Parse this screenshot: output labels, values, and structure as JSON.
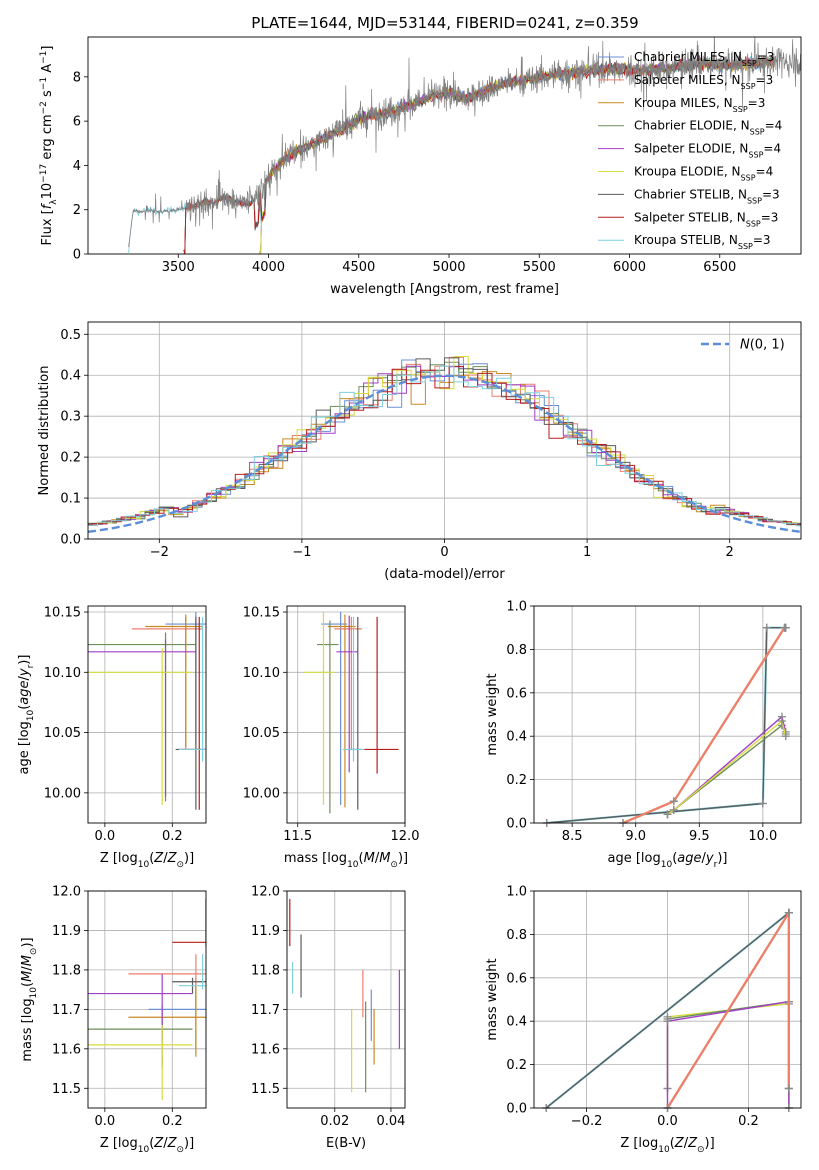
{
  "figure": {
    "title": "PLATE=1644, MJD=53144, FIBERID=0241, z=0.359"
  },
  "colors": {
    "chabrier_miles": "#6b8fd6",
    "salpeter_miles": "#ee7f6e",
    "kroupa_miles": "#c98a22",
    "chabrier_elodie": "#6e8f5a",
    "salpeter_elodie": "#a23fc8",
    "kroupa_elodie": "#d6dc3f",
    "chabrier_stelib": "#5c5c5c",
    "salpeter_stelib": "#b81e1e",
    "kroupa_stelib": "#7fcfe0",
    "normal": "#5b8ed6",
    "spectrum": "#808080"
  },
  "chart_data": [
    {
      "type": "line",
      "id": "spectrum",
      "xlabel": "wavelength [Angstrom, rest frame]",
      "ylabel_parts": [
        "Flux [",
        "f",
        "λ",
        "10",
        "−17",
        " erg cm",
        "−2",
        " s",
        "−1",
        " A",
        "−1",
        "]"
      ],
      "xlim": [
        3000,
        6950
      ],
      "ylim": [
        0,
        9.8
      ],
      "xticks": [
        3500,
        4000,
        4500,
        5000,
        5500,
        6000,
        6500
      ],
      "yticks": [
        0,
        2,
        4,
        6,
        8
      ],
      "legend_position": "top-right",
      "legend": [
        {
          "pre": "Chabrier MILES, N",
          "sub": "SSP",
          "post": "=3",
          "color_key": "chabrier_miles"
        },
        {
          "pre": "Salpeter MILES, N",
          "sub": "SSP",
          "post": "=3",
          "color_key": "salpeter_miles"
        },
        {
          "pre": "Kroupa MILES, N",
          "sub": "SSP",
          "post": "=3",
          "color_key": "kroupa_miles"
        },
        {
          "pre": "Chabrier ELODIE, N",
          "sub": "SSP",
          "post": "=4",
          "color_key": "chabrier_elodie"
        },
        {
          "pre": "Salpeter ELODIE, N",
          "sub": "SSP",
          "post": "=4",
          "color_key": "salpeter_elodie"
        },
        {
          "pre": "Kroupa ELODIE, N",
          "sub": "SSP",
          "post": "=4",
          "color_key": "kroupa_elodie"
        },
        {
          "pre": "Chabrier STELIB, N",
          "sub": "SSP",
          "post": "=3",
          "color_key": "chabrier_stelib"
        },
        {
          "pre": "Salpeter STELIB, N",
          "sub": "SSP",
          "post": "=3",
          "color_key": "salpeter_stelib"
        },
        {
          "pre": "Kroupa STELIB, N",
          "sub": "SSP",
          "post": "=3",
          "color_key": "kroupa_stelib"
        }
      ],
      "continuum": {
        "x": [
          3220,
          3250,
          3300,
          3350,
          3400,
          3450,
          3500,
          3550,
          3600,
          3650,
          3700,
          3750,
          3800,
          3850,
          3900,
          3950,
          4000,
          4100,
          4200,
          4300,
          4400,
          4500,
          4600,
          4700,
          4800,
          4900,
          5000,
          5100,
          5200,
          5300,
          5400,
          5500,
          5600,
          5700,
          5800,
          5900,
          6000,
          6100,
          6200,
          6300,
          6400,
          6500,
          6600,
          6700,
          6800
        ],
        "y": [
          0,
          1.95,
          1.9,
          2.0,
          1.9,
          1.95,
          2.0,
          2.1,
          2.2,
          2.4,
          2.3,
          2.6,
          2.4,
          2.3,
          2.3,
          2.6,
          3.5,
          4.4,
          4.8,
          5.2,
          5.6,
          6.1,
          6.3,
          6.5,
          6.8,
          7.1,
          7.3,
          7.0,
          7.4,
          7.7,
          7.8,
          8.0,
          8.1,
          8.2,
          8.3,
          8.4,
          8.3,
          8.3,
          8.4,
          8.5,
          8.6,
          8.5,
          8.6,
          8.6,
          8.7
        ]
      },
      "data_start": {
        "x": [
          3220,
          3530,
          3950
        ],
        "series": [
          "kroupa_stelib",
          "miles_and_stelib",
          "elodie"
        ]
      }
    },
    {
      "type": "line",
      "id": "residuals",
      "xlabel": "(data-model)/error",
      "ylabel": "Normed distribution",
      "xlim": [
        -2.5,
        2.5
      ],
      "ylim": [
        0,
        0.53
      ],
      "xticks": [
        -2,
        -1,
        0,
        1,
        2
      ],
      "yticks": [
        0.0,
        0.1,
        0.2,
        0.3,
        0.4,
        0.5
      ],
      "grid": true,
      "legend_position": "top-right",
      "normal_label": "N(0, 1)",
      "normal": {
        "mean": 0,
        "sigma": 1
      }
    },
    {
      "type": "scatter",
      "id": "age_vs_Z",
      "xlabel": "Z [log10(Z/Z⊙)]",
      "ylabel": "age  [log10(age/yr)]",
      "xlim": [
        -0.05,
        0.3
      ],
      "ylim": [
        9.975,
        10.155
      ],
      "xticks": [
        0.0,
        0.2
      ],
      "yticks": [
        10.0,
        10.05,
        10.1,
        10.15
      ],
      "grid": true,
      "points": [
        {
          "key": "chabrier_miles",
          "x": 0.27,
          "y": 10.14,
          "xerr": [
            0.09,
            0.03
          ],
          "yerr": [
            0.1,
            0.01
          ]
        },
        {
          "key": "salpeter_miles",
          "x": 0.24,
          "y": 10.136,
          "xerr": [
            0.16,
            0.05
          ],
          "yerr": [
            0.1,
            0.01
          ]
        },
        {
          "key": "kroupa_miles",
          "x": 0.24,
          "y": 10.138,
          "xerr": [
            0.12,
            0.05
          ],
          "yerr": [
            0.1,
            0.01
          ]
        },
        {
          "key": "chabrier_elodie",
          "x": 0.18,
          "y": 10.123,
          "xerr": [
            0.23,
            0.09
          ],
          "yerr": [
            0.13,
            0.01
          ]
        },
        {
          "key": "salpeter_elodie",
          "x": 0.18,
          "y": 10.117,
          "xerr": [
            0.23,
            0.09
          ],
          "yerr": [
            0.12,
            0.01
          ]
        },
        {
          "key": "kroupa_elodie",
          "x": 0.17,
          "y": 10.1,
          "xerr": [
            0.22,
            0.09
          ],
          "yerr": [
            0.11,
            0.02
          ]
        },
        {
          "key": "chabrier_stelib",
          "x": 0.27,
          "y": 10.036,
          "xerr": [
            0.06,
            0.03
          ],
          "yerr": [
            0.05,
            0.11
          ]
        },
        {
          "key": "salpeter_stelib",
          "x": 0.28,
          "y": 10.036,
          "xerr": [
            0.06,
            0.03
          ],
          "yerr": [
            0.05,
            0.11
          ]
        },
        {
          "key": "kroupa_stelib",
          "x": 0.29,
          "y": 10.036,
          "xerr": [
            0.07,
            0.02
          ],
          "yerr": [
            0.01,
            0.11
          ]
        }
      ]
    },
    {
      "type": "scatter",
      "id": "age_vs_mass",
      "xlabel": "mass [log10(M/M⊙)]",
      "xlim": [
        11.45,
        12.0
      ],
      "ylim": [
        9.975,
        10.155
      ],
      "xticks": [
        11.5,
        12.0
      ],
      "yticks": [
        10.0,
        10.05,
        10.1,
        10.15
      ],
      "grid": true,
      "points": [
        {
          "key": "chabrier_miles",
          "x": 11.7,
          "y": 10.14,
          "xerr": [
            0.09,
            0.03
          ],
          "yerr": [
            0.15,
            0.01
          ]
        },
        {
          "key": "salpeter_miles",
          "x": 11.75,
          "y": 10.136,
          "xerr": [
            0.08,
            0.05
          ],
          "yerr": [
            0.1,
            0.01
          ]
        },
        {
          "key": "kroupa_miles",
          "x": 11.72,
          "y": 10.138,
          "xerr": [
            0.08,
            0.05
          ],
          "yerr": [
            0.15,
            0.01
          ]
        },
        {
          "key": "chabrier_elodie",
          "x": 11.65,
          "y": 10.123,
          "xerr": [
            0.06,
            0.04
          ],
          "yerr": [
            0.14,
            0.02
          ]
        },
        {
          "key": "salpeter_elodie",
          "x": 11.74,
          "y": 10.117,
          "xerr": [
            0.06,
            0.04
          ],
          "yerr": [
            0.1,
            0.03
          ]
        },
        {
          "key": "kroupa_elodie",
          "x": 11.62,
          "y": 10.1,
          "xerr": [
            0.09,
            0.05
          ],
          "yerr": [
            0.11,
            0.05
          ]
        },
        {
          "key": "chabrier_stelib",
          "x": 11.78,
          "y": 10.036,
          "xerr": [
            0.04,
            0.02
          ],
          "yerr": [
            0.05,
            0.11
          ]
        },
        {
          "key": "salpeter_stelib",
          "x": 11.87,
          "y": 10.036,
          "xerr": [
            0.06,
            0.1
          ],
          "yerr": [
            0.02,
            0.11
          ]
        },
        {
          "key": "kroupa_stelib",
          "x": 11.76,
          "y": 10.036,
          "xerr": [
            0.05,
            0.05
          ],
          "yerr": [
            0.01,
            0.11
          ]
        }
      ]
    },
    {
      "type": "line",
      "id": "mass_weight_vs_age",
      "xlabel": "age  [log10(age/yr)]",
      "ylabel": "mass weight",
      "xlim": [
        8.2,
        10.3
      ],
      "ylim": [
        0,
        1.0
      ],
      "xticks": [
        8.5,
        9.0,
        9.5,
        10.0
      ],
      "yticks": [
        0.0,
        0.2,
        0.4,
        0.6,
        0.8,
        1.0
      ],
      "grid": true,
      "series": [
        {
          "key": "kroupa_stelib",
          "x": [
            8.3,
            10.0,
            10.03,
            10.18
          ],
          "y": [
            0.0,
            0.09,
            0.9,
            0.9
          ]
        },
        {
          "key": "chabrier_stelib",
          "x": [
            8.3,
            10.0,
            10.03,
            10.18
          ],
          "y": [
            0.0,
            0.09,
            0.9,
            0.9
          ]
        },
        {
          "key": "chabrier_elodie",
          "x": [
            9.25,
            9.3,
            10.15,
            10.18
          ],
          "y": [
            0.04,
            0.06,
            0.45,
            0.41
          ]
        },
        {
          "key": "salpeter_elodie",
          "x": [
            9.25,
            9.3,
            10.15,
            10.18
          ],
          "y": [
            0.04,
            0.06,
            0.49,
            0.42
          ]
        },
        {
          "key": "kroupa_elodie",
          "x": [
            9.25,
            9.3,
            10.15,
            10.18
          ],
          "y": [
            0.04,
            0.06,
            0.47,
            0.4
          ]
        },
        {
          "key": "kroupa_miles",
          "x": [
            8.9,
            9.3,
            10.17
          ],
          "y": [
            0.0,
            0.1,
            0.9
          ]
        },
        {
          "key": "salpeter_miles",
          "x": [
            8.9,
            9.3,
            10.17
          ],
          "y": [
            0.0,
            0.1,
            0.9
          ]
        }
      ]
    },
    {
      "type": "scatter",
      "id": "mass_vs_Z",
      "xlabel": "Z [log10(Z/Z⊙)]",
      "ylabel": "mass [log10(M/M⊙)]",
      "xlim": [
        -0.05,
        0.3
      ],
      "ylim": [
        11.45,
        12.0
      ],
      "xticks": [
        0.0,
        0.2
      ],
      "yticks": [
        11.5,
        11.6,
        11.7,
        11.8,
        11.9,
        12.0
      ],
      "grid": true,
      "points": [
        {
          "key": "chabrier_miles",
          "x": 0.27,
          "y": 11.7,
          "xerr": [
            0.14,
            0.03
          ],
          "yerr": [
            0.1,
            0.08
          ]
        },
        {
          "key": "salpeter_miles",
          "x": 0.27,
          "y": 11.79,
          "xerr": [
            0.2,
            0.03
          ],
          "yerr": [
            0.1,
            0.05
          ]
        },
        {
          "key": "kroupa_miles",
          "x": 0.27,
          "y": 11.68,
          "xerr": [
            0.2,
            0.03
          ],
          "yerr": [
            0.1,
            0.08
          ]
        },
        {
          "key": "chabrier_elodie",
          "x": 0.17,
          "y": 11.65,
          "xerr": [
            0.22,
            0.09
          ],
          "yerr": [
            0.1,
            0.06
          ]
        },
        {
          "key": "salpeter_elodie",
          "x": 0.17,
          "y": 11.74,
          "xerr": [
            0.22,
            0.09
          ],
          "yerr": [
            0.12,
            0.05
          ]
        },
        {
          "key": "kroupa_elodie",
          "x": 0.17,
          "y": 11.61,
          "xerr": [
            0.22,
            0.09
          ],
          "yerr": [
            0.14,
            0.05
          ]
        },
        {
          "key": "chabrier_stelib",
          "x": 0.26,
          "y": 11.77,
          "xerr": [
            0.06,
            0.04
          ],
          "yerr": [
            0.03,
            0.01
          ]
        },
        {
          "key": "salpeter_stelib",
          "x": 0.3,
          "y": 11.87,
          "xerr": [
            0.1,
            0.0
          ],
          "yerr": [
            0.01,
            0.11
          ]
        },
        {
          "key": "kroupa_stelib",
          "x": 0.29,
          "y": 11.76,
          "xerr": [
            0.07,
            0.01
          ],
          "yerr": [
            0.01,
            0.08
          ]
        }
      ]
    },
    {
      "type": "scatter",
      "id": "mass_vs_ebv",
      "xlabel": "E(B-V)",
      "xlim": [
        0.003,
        0.045
      ],
      "ylim": [
        11.45,
        12.0
      ],
      "xticks": [
        0.02,
        0.04
      ],
      "yticks": [
        11.5,
        11.6,
        11.7,
        11.8,
        11.9,
        12.0
      ],
      "grid": true,
      "points": [
        {
          "key": "salpeter_stelib",
          "x": 0.004,
          "y": 11.86,
          "yerr": [
            0.0,
            0.12
          ]
        },
        {
          "key": "kroupa_stelib",
          "x": 0.005,
          "y": 11.8,
          "yerr": [
            0.06,
            0.02
          ]
        },
        {
          "key": "chabrier_stelib",
          "x": 0.008,
          "y": 11.8,
          "yerr": [
            0.07,
            0.09
          ]
        },
        {
          "key": "kroupa_elodie",
          "x": 0.026,
          "y": 11.6,
          "yerr": [
            0.11,
            0.1
          ]
        },
        {
          "key": "salpeter_miles",
          "x": 0.03,
          "y": 11.74,
          "yerr": [
            0.06,
            0.06
          ]
        },
        {
          "key": "chabrier_elodie",
          "x": 0.031,
          "y": 11.62,
          "yerr": [
            0.13,
            0.1
          ]
        },
        {
          "key": "chabrier_miles",
          "x": 0.033,
          "y": 11.68,
          "yerr": [
            0.06,
            0.07
          ]
        },
        {
          "key": "kroupa_miles",
          "x": 0.034,
          "y": 11.65,
          "yerr": [
            0.09,
            0.05
          ]
        },
        {
          "key": "salpeter_elodie",
          "x": 0.043,
          "y": 11.7,
          "yerr": [
            0.1,
            0.1
          ]
        }
      ]
    },
    {
      "type": "line",
      "id": "mass_weight_vs_Z",
      "xlabel": "Z [log10(Z/Z⊙)]",
      "ylabel": "mass weight",
      "xlim": [
        -0.33,
        0.33
      ],
      "ylim": [
        0,
        1.0
      ],
      "xticks": [
        -0.2,
        0.0,
        0.2
      ],
      "yticks": [
        0.0,
        0.2,
        0.4,
        0.6,
        0.8,
        1.0
      ],
      "grid": true,
      "series": [
        {
          "key": "kroupa_stelib",
          "x": [
            -0.3,
            0.3,
            0.3
          ],
          "y": [
            0.0,
            0.9,
            0.09
          ]
        },
        {
          "key": "chabrier_stelib",
          "x": [
            -0.3,
            0.3,
            0.3
          ],
          "y": [
            0.0,
            0.9,
            0.09
          ]
        },
        {
          "key": "kroupa_elodie",
          "x": [
            0.0,
            0.0,
            0.3,
            0.3
          ],
          "y": [
            0.09,
            0.42,
            0.48,
            0.0
          ]
        },
        {
          "key": "chabrier_elodie",
          "x": [
            0.0,
            0.0,
            0.3,
            0.3
          ],
          "y": [
            0.09,
            0.41,
            0.49,
            0.0
          ]
        },
        {
          "key": "salpeter_elodie",
          "x": [
            0.0,
            0.0,
            0.3,
            0.3
          ],
          "y": [
            0.0,
            0.4,
            0.49,
            0.0
          ]
        },
        {
          "key": "kroupa_miles",
          "x": [
            0.0,
            0.3,
            0.3
          ],
          "y": [
            0.0,
            0.9,
            0.09
          ]
        },
        {
          "key": "salpeter_miles",
          "x": [
            0.0,
            0.3,
            0.3
          ],
          "y": [
            0.0,
            0.9,
            0.09
          ]
        }
      ]
    }
  ]
}
